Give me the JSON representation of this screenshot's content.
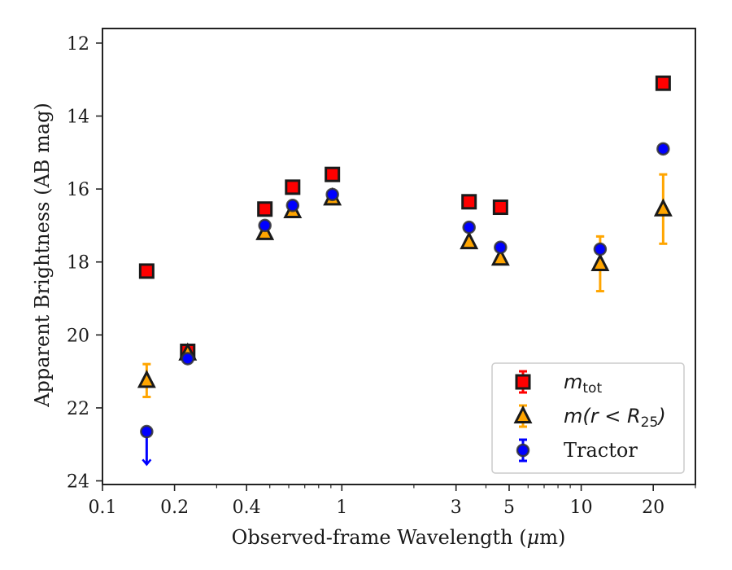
{
  "chart_data": {
    "type": "scatter",
    "xlabel_pre": "Observed-frame Wavelength (",
    "xlabel_mu": "μ",
    "xlabel_post": "m)",
    "ylabel": "Apparent Brightness (AB mag)",
    "xscale": "log",
    "xlim": [
      0.1,
      30
    ],
    "ylim": [
      24.1,
      11.6
    ],
    "y_inverted": true,
    "grid": false,
    "legend_position": "lower-right",
    "xticks": [
      {
        "value": 0.1,
        "label": "0.1"
      },
      {
        "value": 0.2,
        "label": "0.2"
      },
      {
        "value": 0.4,
        "label": "0.4"
      },
      {
        "value": 1,
        "label": "1"
      },
      {
        "value": 3,
        "label": "3"
      },
      {
        "value": 5,
        "label": "5"
      },
      {
        "value": 10,
        "label": "10"
      },
      {
        "value": 20,
        "label": "20"
      }
    ],
    "yticks": [
      {
        "value": 12,
        "label": "12"
      },
      {
        "value": 14,
        "label": "14"
      },
      {
        "value": 16,
        "label": "16"
      },
      {
        "value": 18,
        "label": "18"
      },
      {
        "value": 20,
        "label": "20"
      },
      {
        "value": 22,
        "label": "22"
      },
      {
        "value": 24,
        "label": "24"
      }
    ],
    "series": [
      {
        "key": "mtot",
        "marker": "square",
        "color": "#ff0000",
        "edge_color": "#1a1a1a",
        "err_color": "#ff0000",
        "points": [
          {
            "x": 0.153,
            "y": 18.25
          },
          {
            "x": 0.227,
            "y": 20.45
          },
          {
            "x": 0.477,
            "y": 16.55
          },
          {
            "x": 0.623,
            "y": 15.95
          },
          {
            "x": 0.913,
            "y": 15.6
          },
          {
            "x": 3.4,
            "y": 16.35
          },
          {
            "x": 4.6,
            "y": 16.5
          },
          {
            "x": 22.0,
            "y": 13.1
          }
        ]
      },
      {
        "key": "mr25",
        "marker": "triangle",
        "color": "#ffa500",
        "edge_color": "#1a1a1a",
        "err_color": "#ffa500",
        "points": [
          {
            "x": 0.153,
            "y": 21.25,
            "yerr": 0.45
          },
          {
            "x": 0.227,
            "y": 20.5
          },
          {
            "x": 0.477,
            "y": 17.2
          },
          {
            "x": 0.623,
            "y": 16.6
          },
          {
            "x": 0.913,
            "y": 16.25
          },
          {
            "x": 3.4,
            "y": 17.45
          },
          {
            "x": 4.6,
            "y": 17.9
          },
          {
            "x": 12.0,
            "y": 18.05,
            "yerr": 0.75
          },
          {
            "x": 22.0,
            "y": 16.55,
            "yerr": 0.95
          }
        ]
      },
      {
        "key": "tractor",
        "name": "Tractor",
        "marker": "circle",
        "color": "#0000ff",
        "edge_color": "#333333",
        "err_color": "#0000ff",
        "points": [
          {
            "x": 0.153,
            "y": 22.65,
            "upper_limit": true
          },
          {
            "x": 0.227,
            "y": 20.65
          },
          {
            "x": 0.477,
            "y": 17.0
          },
          {
            "x": 0.623,
            "y": 16.45
          },
          {
            "x": 0.913,
            "y": 16.15
          },
          {
            "x": 3.4,
            "y": 17.05
          },
          {
            "x": 4.6,
            "y": 17.6
          },
          {
            "x": 12.0,
            "y": 17.65
          },
          {
            "x": 22.0,
            "y": 14.9
          }
        ]
      }
    ],
    "legend": [
      {
        "series": "mtot",
        "label_base": "m",
        "label_sub": "tot",
        "label_rest": ""
      },
      {
        "series": "mr25",
        "label_base": "m",
        "label_sub": "25",
        "label_rest": "(r < R"
      },
      {
        "series": "tractor",
        "label": "Tractor"
      }
    ]
  }
}
